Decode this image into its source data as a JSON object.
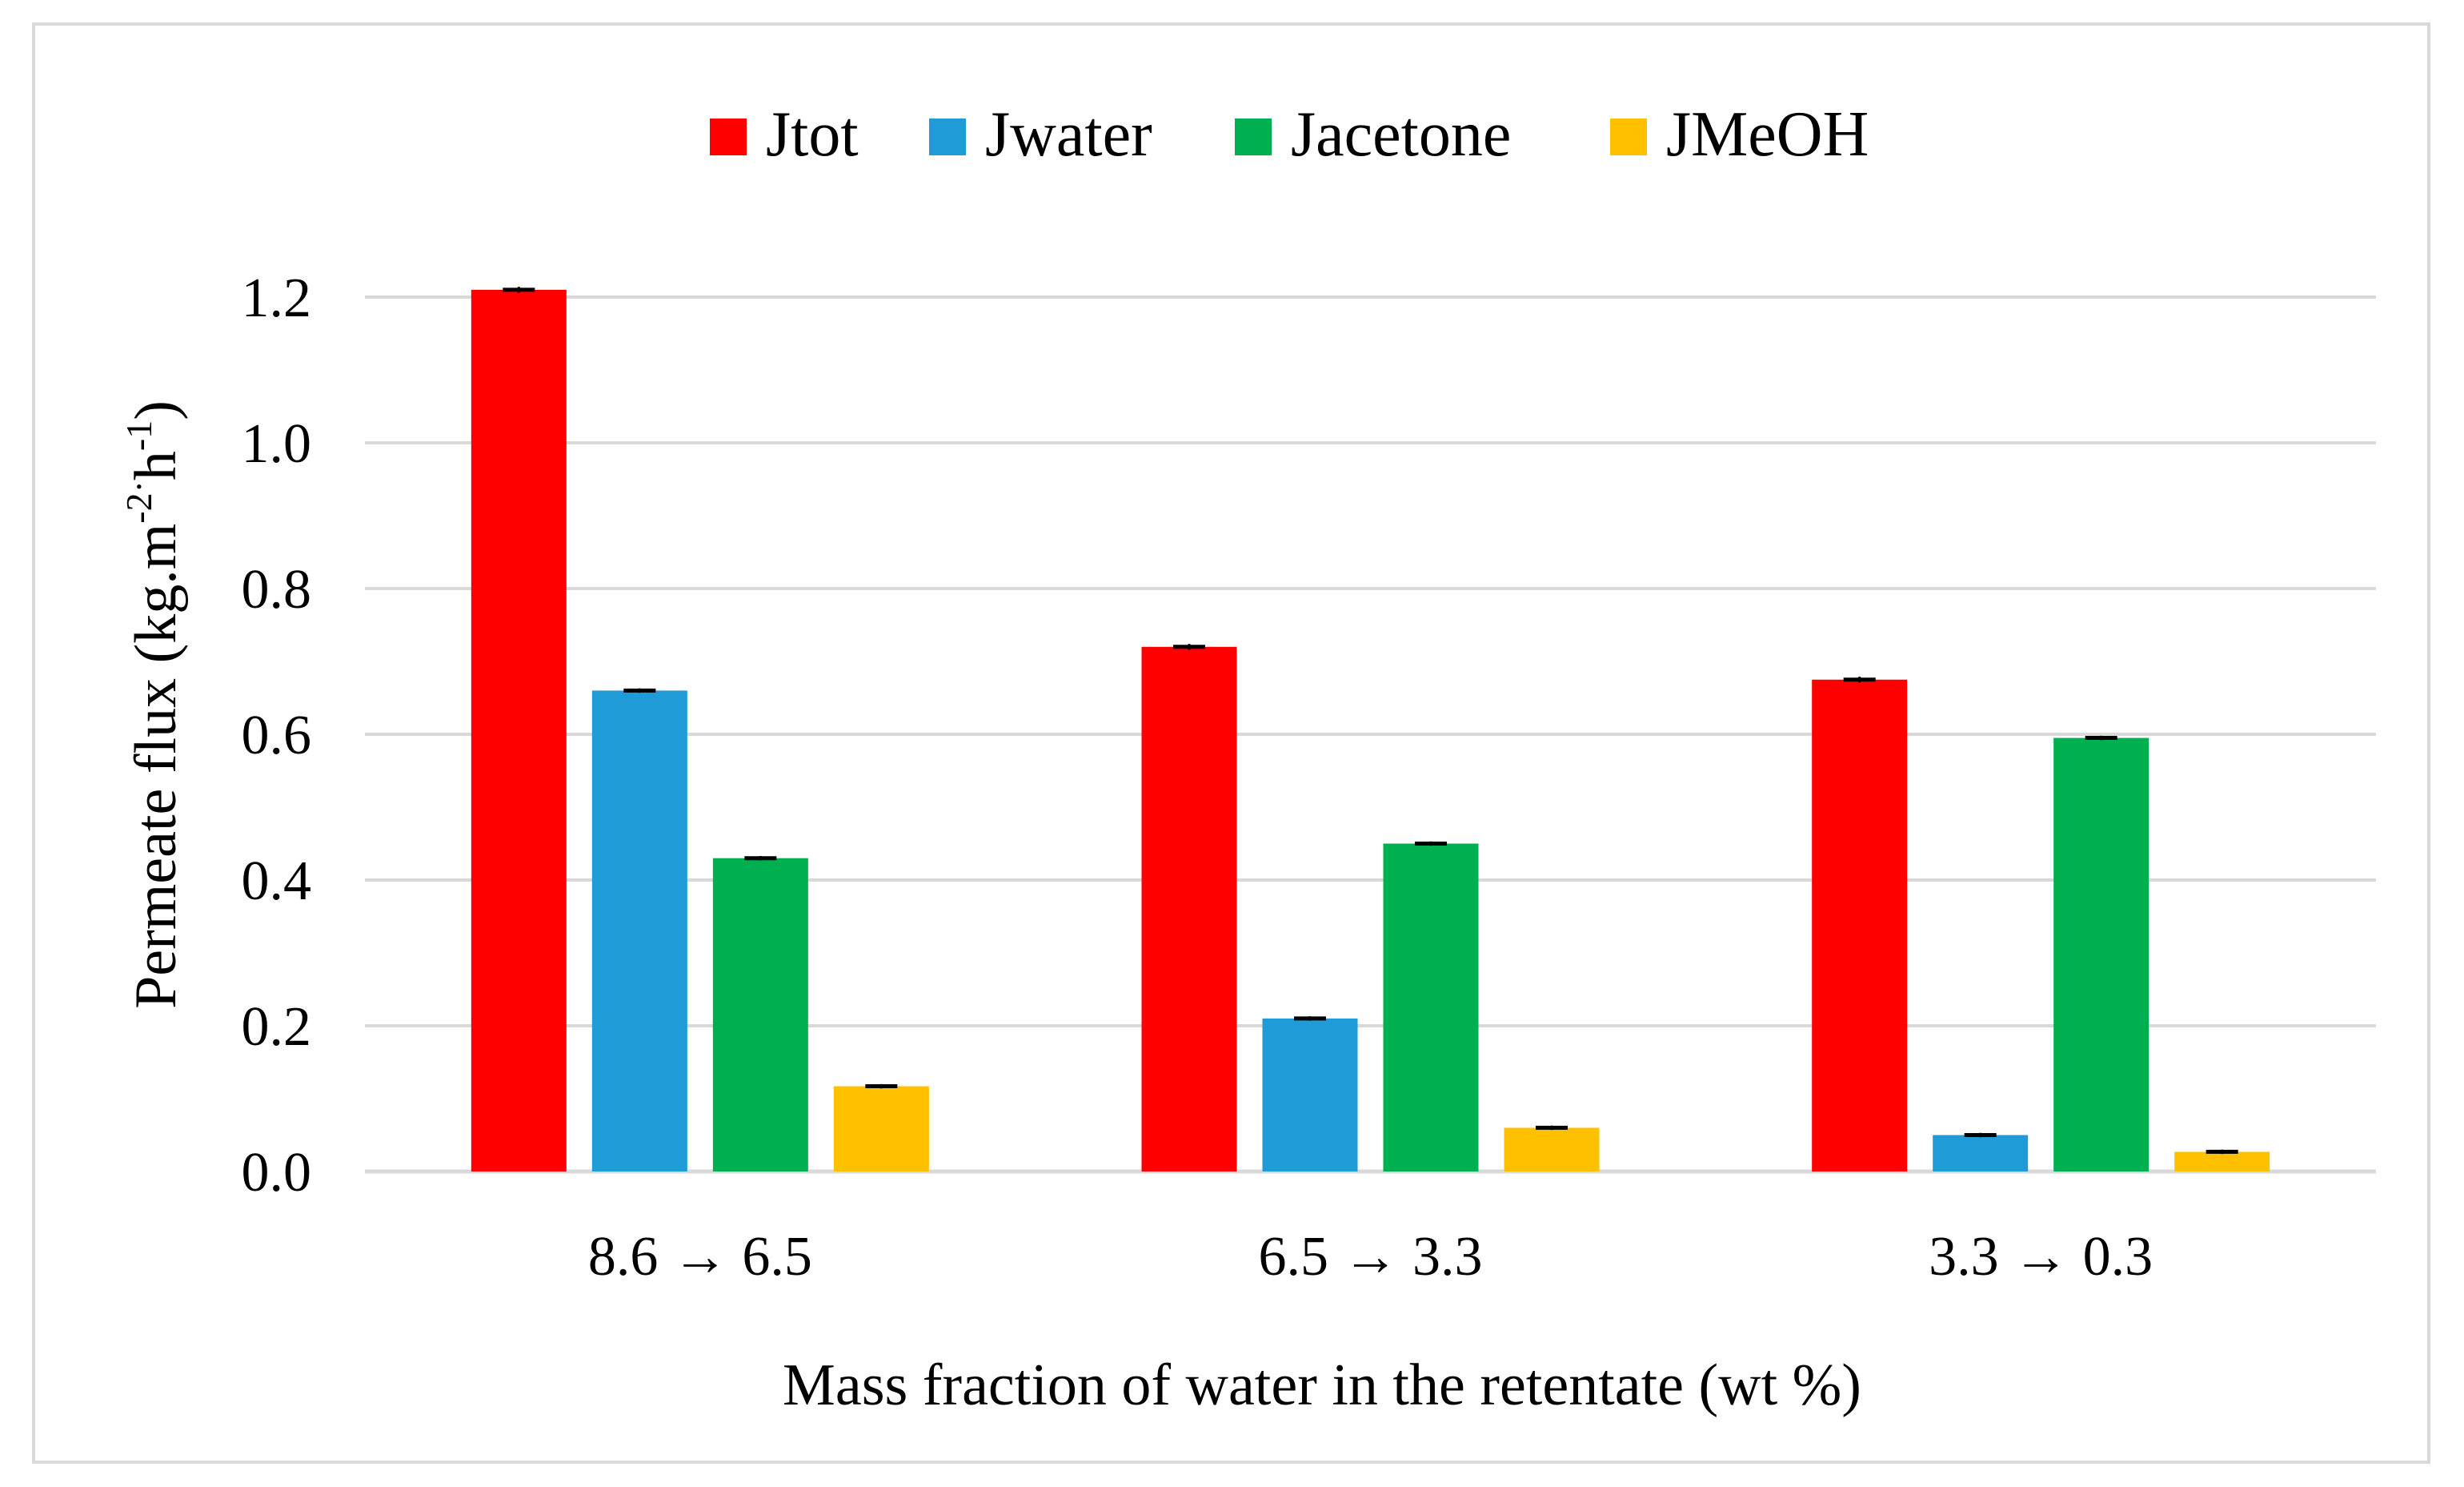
{
  "chart_data": {
    "type": "bar",
    "title": "",
    "xlabel": "Mass fraction of water in the retentate (wt %)",
    "ylabel": {
      "main": "Permeate flux (kg.m",
      "sup1": "-2",
      "dot": "·",
      "mid": "h",
      "sup2": "-1",
      "end": ")"
    },
    "categories": [
      "8.6 → 6.5",
      "6.5 → 3.3",
      "3.3 → 0.3"
    ],
    "series": [
      {
        "name": "Jtot",
        "color": "#ff0000",
        "values": [
          1.21,
          0.72,
          0.675
        ],
        "errors": [
          0.004,
          0.004,
          0.004
        ]
      },
      {
        "name": "Jwater",
        "color": "#1f9bd7",
        "values": [
          0.66,
          0.21,
          0.05
        ],
        "errors": [
          0.003,
          0.003,
          0.003
        ]
      },
      {
        "name": "Jacetone",
        "color": "#00b050",
        "values": [
          0.43,
          0.45,
          0.595
        ],
        "errors": [
          0.003,
          0.003,
          0.003
        ]
      },
      {
        "name": "JMeOH",
        "color": "#ffc000",
        "values": [
          0.117,
          0.06,
          0.027
        ],
        "errors": [
          0.003,
          0.003,
          0.003
        ]
      }
    ],
    "ylim": [
      0,
      1.2
    ],
    "yticks": [
      "0.0",
      "0.2",
      "0.4",
      "0.6",
      "0.8",
      "1.0",
      "1.2"
    ],
    "ytick_values": [
      0,
      0.2,
      0.4,
      0.6,
      0.8,
      1.0,
      1.2
    ],
    "grid": true,
    "legend_position": "top-center",
    "gridline_color": "#d9d9d9"
  }
}
